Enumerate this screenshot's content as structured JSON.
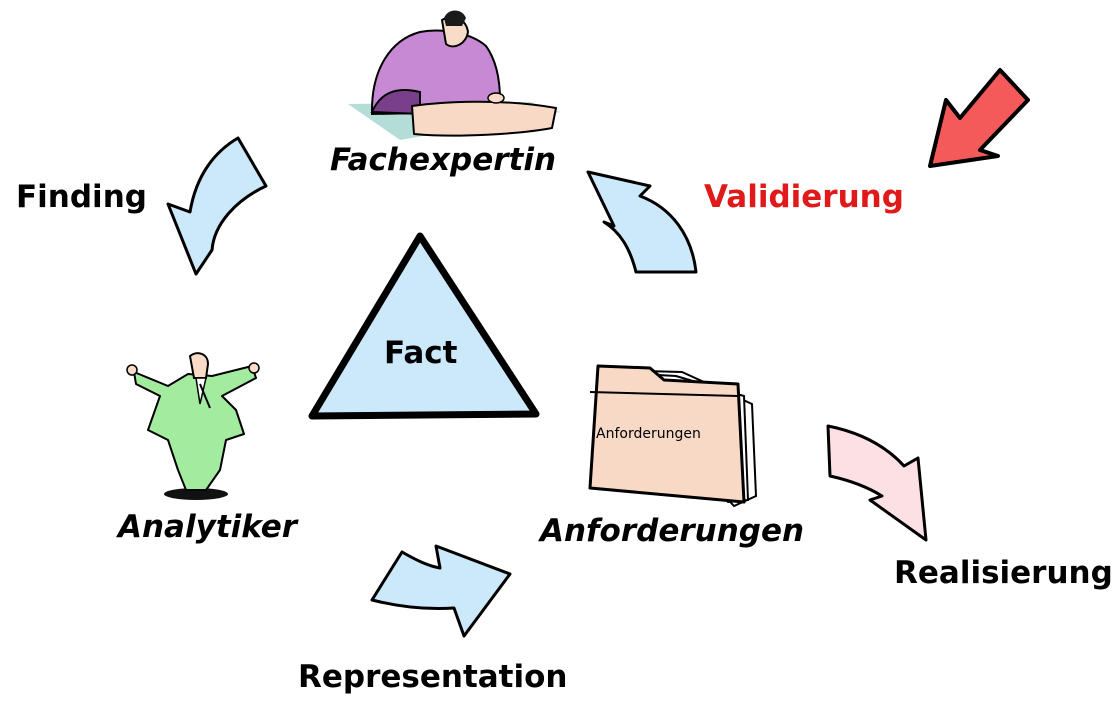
{
  "diagram": {
    "center": {
      "label": "Fact"
    },
    "roles": {
      "fachexpertin": "Fachexpertin",
      "analytiker": "Analytiker",
      "anforderungen": "Anforderungen",
      "folder_label": "Anforderungen"
    },
    "activities": {
      "finding": "Finding",
      "validierung": "Validierung",
      "realisierung": "Realisierung",
      "representation": "Representation"
    },
    "colors": {
      "arrow_blue": "#cce9fb",
      "arrow_pink": "#fce0e4",
      "highlight_arrow": "#f55a5a",
      "validierung_text": "#e0191a",
      "triangle_fill": "#cce9fb",
      "folder_fill": "#f8d9c6",
      "expert_dress": "#c889d4",
      "analyst_suit": "#a3ec9f",
      "outline": "#000000"
    },
    "icons": [
      "woman-expert-icon",
      "analyst-man-icon",
      "folder-icon",
      "highlight-arrow-icon"
    ]
  }
}
